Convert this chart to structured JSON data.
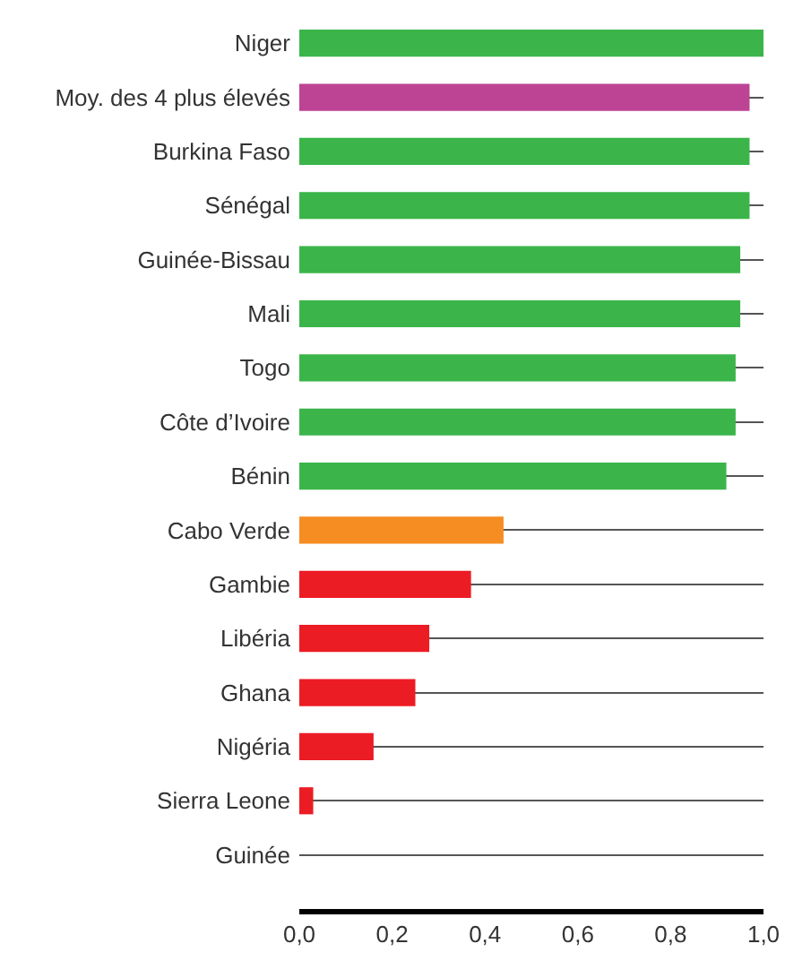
{
  "chart_data": {
    "type": "bar",
    "orientation": "horizontal",
    "categories": [
      "Niger",
      "Moy. des 4 plus élevés",
      "Burkina Faso",
      "Sénégal",
      "Guinée-Bissau",
      "Mali",
      "Togo",
      "Côte d’Ivoire",
      "Bénin",
      "Cabo Verde",
      "Gambie",
      "Libéria",
      "Ghana",
      "Nigéria",
      "Sierra Leone",
      "Guinée"
    ],
    "values": [
      1.0,
      0.97,
      0.97,
      0.97,
      0.95,
      0.95,
      0.94,
      0.94,
      0.92,
      0.44,
      0.37,
      0.28,
      0.25,
      0.16,
      0.03,
      0.0
    ],
    "colors": [
      "#3bb54a",
      "#bd4395",
      "#3bb54a",
      "#3bb54a",
      "#3bb54a",
      "#3bb54a",
      "#3bb54a",
      "#3bb54a",
      "#3bb54a",
      "#f68d22",
      "#ec1c24",
      "#ec1c24",
      "#ec1c24",
      "#ec1c24",
      "#ec1c24",
      "#ec1c24"
    ],
    "xlim": [
      0,
      1
    ],
    "xticks": [
      {
        "value": 0,
        "label": "0,0"
      },
      {
        "value": 0.2,
        "label": "0,2"
      },
      {
        "value": 0.4,
        "label": "0,4"
      },
      {
        "value": 0.6,
        "label": "0,6"
      },
      {
        "value": 0.8,
        "label": "0,8"
      },
      {
        "value": 1,
        "label": "1,0"
      }
    ],
    "grid": "y"
  }
}
